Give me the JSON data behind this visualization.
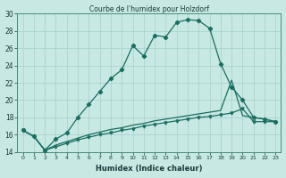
{
  "title": "Courbe de l'humidex pour Holzdorf",
  "xlabel": "Humidex (Indice chaleur)",
  "xlim": [
    -0.5,
    23.5
  ],
  "ylim": [
    14,
    30
  ],
  "yticks": [
    14,
    16,
    18,
    20,
    22,
    24,
    26,
    28,
    30
  ],
  "xticks": [
    0,
    1,
    2,
    3,
    4,
    5,
    6,
    7,
    8,
    9,
    10,
    11,
    12,
    13,
    14,
    15,
    16,
    17,
    18,
    19,
    20,
    21,
    22,
    23
  ],
  "bg_color": "#c8e8e4",
  "line_color": "#1a6e5e",
  "grid_color": "#aad4d0",
  "title_color": "#1a3a3a",
  "series_main_x": [
    0,
    1,
    2,
    3,
    4,
    5,
    6,
    7,
    8,
    9,
    10,
    11,
    12,
    13,
    14,
    15,
    16,
    17,
    18,
    19,
    20,
    21,
    22,
    23
  ],
  "series_main_y": [
    16.5,
    15.8,
    14.2,
    15.5,
    16.2,
    18.0,
    19.5,
    21.0,
    22.5,
    23.5,
    26.3,
    25.1,
    27.5,
    27.3,
    29.0,
    29.3,
    29.2,
    28.3,
    24.2,
    21.5,
    20.0,
    18.0,
    17.8,
    17.5
  ],
  "series_a_x": [
    0,
    1,
    2,
    3,
    4,
    5,
    6,
    7,
    8,
    9,
    10,
    11,
    12,
    13,
    14,
    15,
    16,
    17,
    18,
    19,
    20,
    21,
    22,
    23
  ],
  "series_a_y": [
    16.5,
    15.8,
    14.2,
    14.8,
    15.2,
    15.6,
    16.0,
    16.3,
    16.6,
    16.8,
    17.1,
    17.3,
    17.6,
    17.8,
    18.0,
    18.2,
    18.4,
    18.6,
    18.8,
    22.3,
    18.2,
    18.0,
    17.8,
    17.5
  ],
  "series_b_x": [
    0,
    1,
    2,
    3,
    4,
    5,
    6,
    7,
    8,
    9,
    10,
    11,
    12,
    13,
    14,
    15,
    16,
    17,
    18,
    19,
    20,
    21,
    22,
    23
  ],
  "series_b_y": [
    16.5,
    15.8,
    14.2,
    14.6,
    15.0,
    15.4,
    15.7,
    16.0,
    16.2,
    16.5,
    16.7,
    17.0,
    17.2,
    17.4,
    17.6,
    17.8,
    18.0,
    18.1,
    18.3,
    18.5,
    19.0,
    17.5,
    17.5,
    17.5
  ]
}
